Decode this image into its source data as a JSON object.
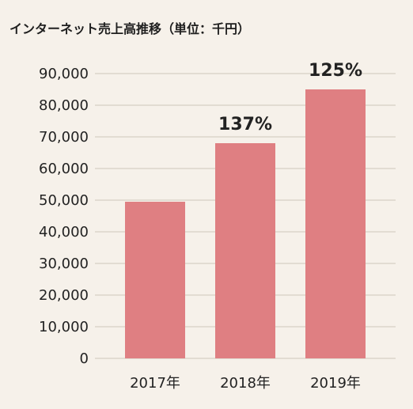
{
  "chart_data": {
    "type": "bar",
    "title": "インターネット売上高推移（単位：千円）",
    "categories": [
      "2017年",
      "2018年",
      "2019年"
    ],
    "values": [
      49500,
      68000,
      85000
    ],
    "data_labels": [
      "",
      "137%",
      "125%"
    ],
    "y_ticks": [
      "0",
      "10,000",
      "20,000",
      "30,000",
      "40,000",
      "50,000",
      "60,000",
      "70,000",
      "80,000",
      "90,000"
    ],
    "ylim": [
      0,
      90000
    ],
    "grid": true,
    "colors": {
      "bar": "#df7f82",
      "grid": "#cfc6bb",
      "background": "#f6f1ea",
      "text": "#222222"
    }
  }
}
